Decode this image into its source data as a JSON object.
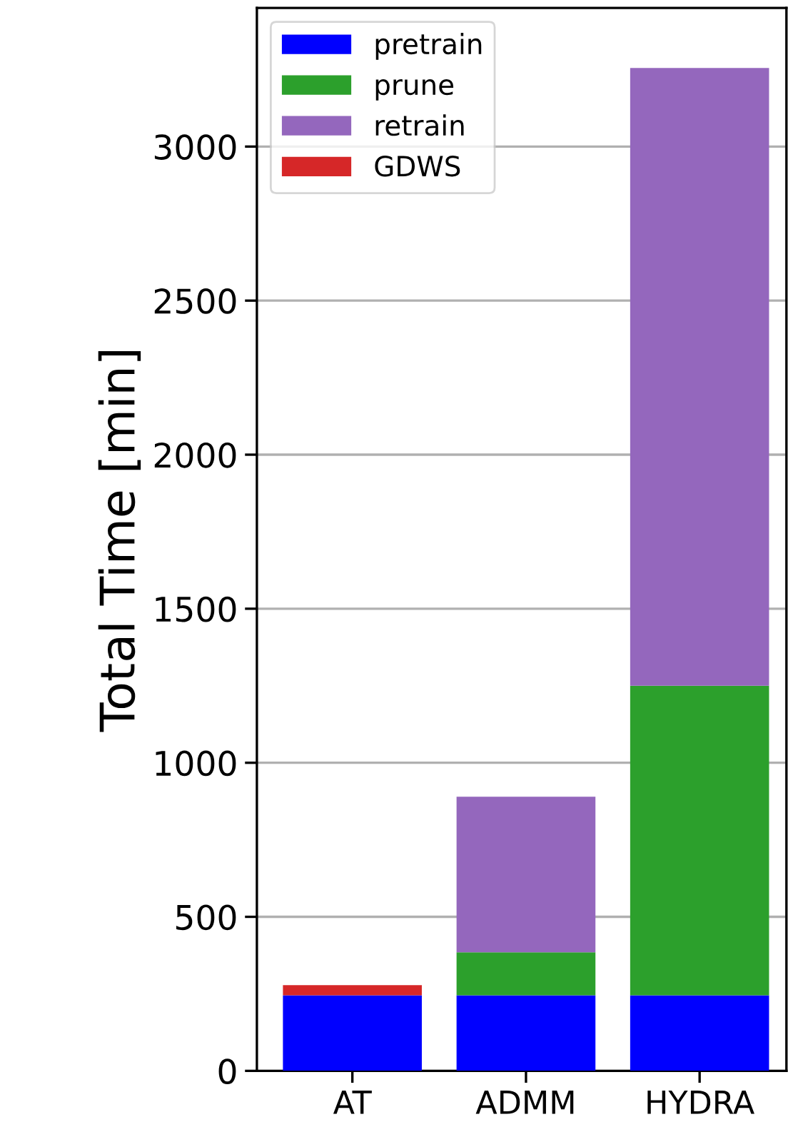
{
  "chart_data": {
    "type": "bar",
    "stacked": true,
    "ylabel": "Total Time [min]",
    "categories": [
      "AT",
      "ADMM",
      "HYDRA"
    ],
    "series": [
      {
        "name": "pretrain",
        "color": "#0000ff",
        "values": [
          245,
          245,
          245
        ]
      },
      {
        "name": "prune",
        "color": "#2ca02c",
        "values": [
          0,
          140,
          1005
        ]
      },
      {
        "name": "retrain",
        "color": "#9467bd",
        "values": [
          0,
          505,
          2005
        ]
      },
      {
        "name": "GDWS",
        "color": "#d62728",
        "values": [
          33,
          0,
          0
        ]
      }
    ],
    "ylim": [
      0,
      3450
    ],
    "yticks": [
      0,
      500,
      1000,
      1500,
      2000,
      2500,
      3000
    ],
    "grid": "y",
    "legend": "top left"
  }
}
